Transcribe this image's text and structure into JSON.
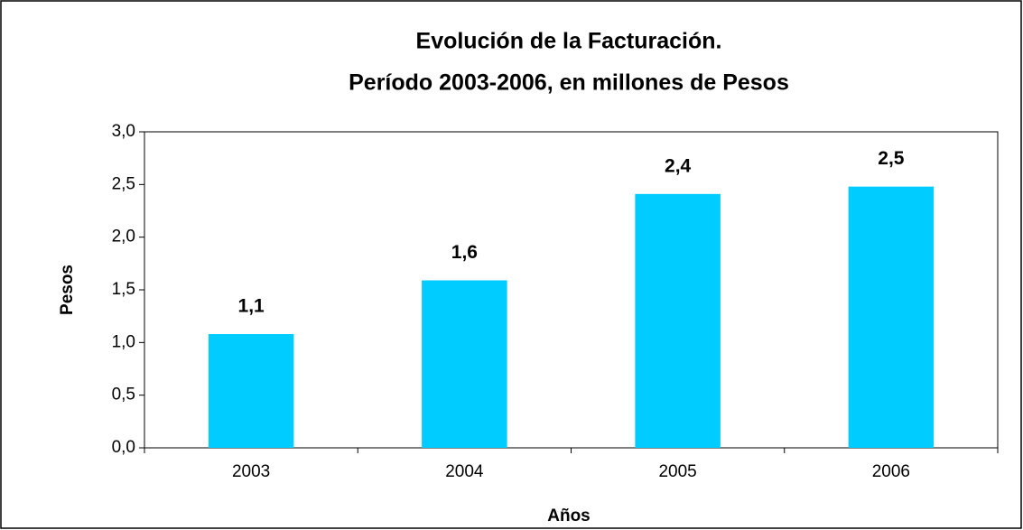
{
  "chart_data": {
    "type": "bar",
    "title": [
      "Evolución de la Facturación.",
      "Período 2003-2006, en millones de Pesos"
    ],
    "x_label": "Años",
    "y_label": "Pesos",
    "categories": [
      "2003",
      "2004",
      "2005",
      "2006"
    ],
    "values": [
      1.08,
      1.59,
      2.41,
      2.48
    ],
    "value_labels": [
      "1,1",
      "1,6",
      "2,4",
      "2,5"
    ],
    "color": "#00ccff",
    "ylim": [
      0,
      3
    ],
    "yticks": [
      {
        "value": 0,
        "label": "0,0"
      },
      {
        "value": 0.5,
        "label": "0,5"
      },
      {
        "value": 1,
        "label": "1,0"
      },
      {
        "value": 1.5,
        "label": "1,5"
      },
      {
        "value": 2,
        "label": "2,0"
      },
      {
        "value": 2.5,
        "label": "2,5"
      },
      {
        "value": 3,
        "label": "3,0"
      }
    ],
    "grid": false
  }
}
